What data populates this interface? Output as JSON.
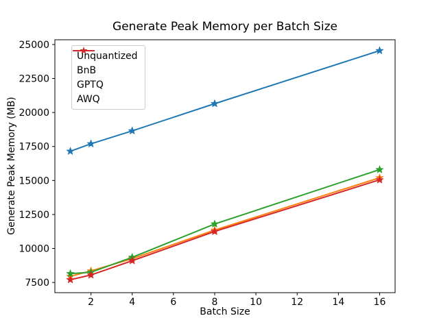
{
  "chart_data": {
    "type": "line",
    "title": "Generate Peak Memory per Batch Size",
    "xlabel": "Batch Size",
    "ylabel": "Generate Peak Memory (MB)",
    "x": [
      1,
      2,
      4,
      8,
      16
    ],
    "series": [
      {
        "name": "Unquantized",
        "color": "#1f77b4",
        "values": [
          17150,
          17700,
          18650,
          20650,
          24550
        ]
      },
      {
        "name": "BnB",
        "color": "#ff7f0e",
        "values": [
          7950,
          8350,
          9250,
          11350,
          15200
        ]
      },
      {
        "name": "GPTQ",
        "color": "#2ca02c",
        "values": [
          8150,
          8250,
          9350,
          11800,
          15800
        ]
      },
      {
        "name": "AWQ",
        "color": "#d62728",
        "values": [
          7700,
          8050,
          9100,
          11250,
          15050
        ]
      }
    ],
    "marker": "star",
    "line_width": 2,
    "xticks": [
      2,
      4,
      6,
      8,
      10,
      12,
      14,
      16
    ],
    "yticks": [
      7500,
      10000,
      12500,
      15000,
      17500,
      20000,
      22500,
      25000
    ],
    "xlim": [
      0.25,
      16.75
    ],
    "ylim": [
      6750,
      25350
    ],
    "grid": false,
    "legend_position": "upper-left",
    "axis_color": "#000000",
    "background_color": "#ffffff"
  }
}
